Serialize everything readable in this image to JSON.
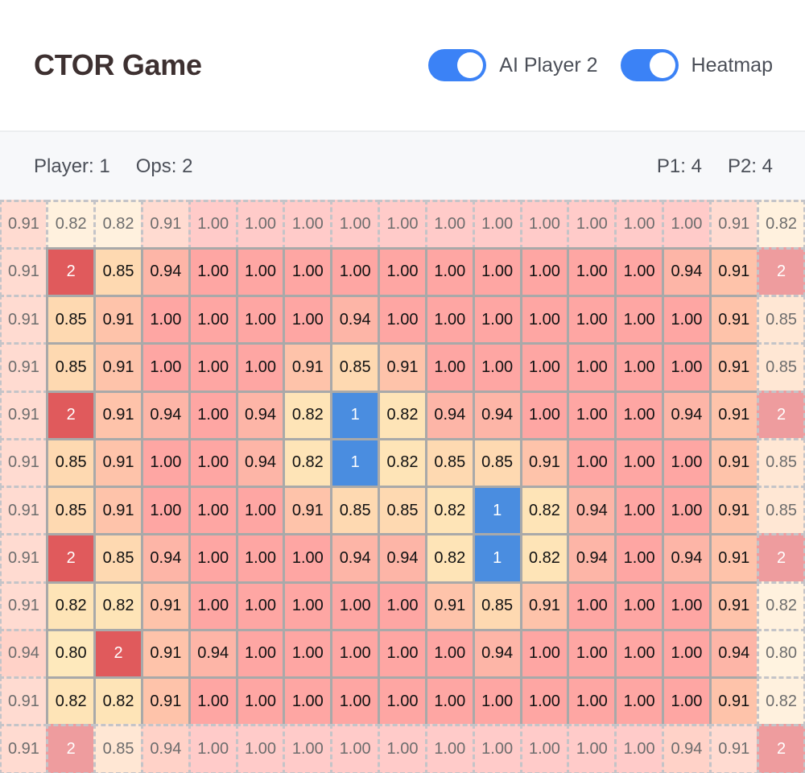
{
  "header": {
    "title": "CTOR Game",
    "toggles": [
      {
        "label": "AI Player 2",
        "on": true
      },
      {
        "label": "Heatmap",
        "on": true
      }
    ]
  },
  "status": {
    "player": "Player: 1",
    "ops": "Ops: 2",
    "p1_score": "P1: 4",
    "p2_score": "P2: 4"
  },
  "colors": {
    "accent": "#3b82f6",
    "player1": "#4a8de0",
    "player2": "#e05a5c",
    "heat_high": "#fea6a3",
    "heat_low": "#fee9bc",
    "grid_line": "#a9a9a9"
  },
  "board": {
    "cols": 17,
    "rows": 12,
    "cells": [
      [
        "0.91",
        "0.82",
        "0.82",
        "0.91",
        "1.00",
        "1.00",
        "1.00",
        "1.00",
        "1.00",
        "1.00",
        "1.00",
        "1.00",
        "1.00",
        "1.00",
        "1.00",
        "0.91",
        "0.82"
      ],
      [
        "0.91",
        "2",
        "0.85",
        "0.94",
        "1.00",
        "1.00",
        "1.00",
        "1.00",
        "1.00",
        "1.00",
        "1.00",
        "1.00",
        "1.00",
        "1.00",
        "0.94",
        "0.91",
        "2"
      ],
      [
        "0.91",
        "0.85",
        "0.91",
        "1.00",
        "1.00",
        "1.00",
        "1.00",
        "0.94",
        "1.00",
        "1.00",
        "1.00",
        "1.00",
        "1.00",
        "1.00",
        "1.00",
        "0.91",
        "0.85"
      ],
      [
        "0.91",
        "0.85",
        "0.91",
        "1.00",
        "1.00",
        "1.00",
        "0.91",
        "0.85",
        "0.91",
        "1.00",
        "1.00",
        "1.00",
        "1.00",
        "1.00",
        "1.00",
        "0.91",
        "0.85"
      ],
      [
        "0.91",
        "2",
        "0.91",
        "0.94",
        "1.00",
        "0.94",
        "0.82",
        "1",
        "0.82",
        "0.94",
        "0.94",
        "1.00",
        "1.00",
        "1.00",
        "0.94",
        "0.91",
        "2"
      ],
      [
        "0.91",
        "0.85",
        "0.91",
        "1.00",
        "1.00",
        "0.94",
        "0.82",
        "1",
        "0.82",
        "0.85",
        "0.85",
        "0.91",
        "1.00",
        "1.00",
        "1.00",
        "0.91",
        "0.85"
      ],
      [
        "0.91",
        "0.85",
        "0.91",
        "1.00",
        "1.00",
        "1.00",
        "0.91",
        "0.85",
        "0.85",
        "0.82",
        "1",
        "0.82",
        "0.94",
        "1.00",
        "1.00",
        "0.91",
        "0.85"
      ],
      [
        "0.91",
        "2",
        "0.85",
        "0.94",
        "1.00",
        "1.00",
        "1.00",
        "0.94",
        "0.94",
        "0.82",
        "1",
        "0.82",
        "0.94",
        "1.00",
        "0.94",
        "0.91",
        "2"
      ],
      [
        "0.91",
        "0.82",
        "0.82",
        "0.91",
        "1.00",
        "1.00",
        "1.00",
        "1.00",
        "1.00",
        "0.91",
        "0.85",
        "0.91",
        "1.00",
        "1.00",
        "1.00",
        "0.91",
        "0.82"
      ],
      [
        "0.94",
        "0.80",
        "2",
        "0.91",
        "0.94",
        "1.00",
        "1.00",
        "1.00",
        "1.00",
        "1.00",
        "0.94",
        "1.00",
        "1.00",
        "1.00",
        "1.00",
        "0.94",
        "0.80"
      ],
      [
        "0.91",
        "0.82",
        "0.82",
        "0.91",
        "1.00",
        "1.00",
        "1.00",
        "1.00",
        "1.00",
        "1.00",
        "1.00",
        "1.00",
        "1.00",
        "1.00",
        "1.00",
        "0.91",
        "0.82"
      ],
      [
        "0.91",
        "2",
        "0.85",
        "0.94",
        "1.00",
        "1.00",
        "1.00",
        "1.00",
        "1.00",
        "1.00",
        "1.00",
        "1.00",
        "1.00",
        "1.00",
        "0.94",
        "0.91",
        "2"
      ]
    ]
  }
}
